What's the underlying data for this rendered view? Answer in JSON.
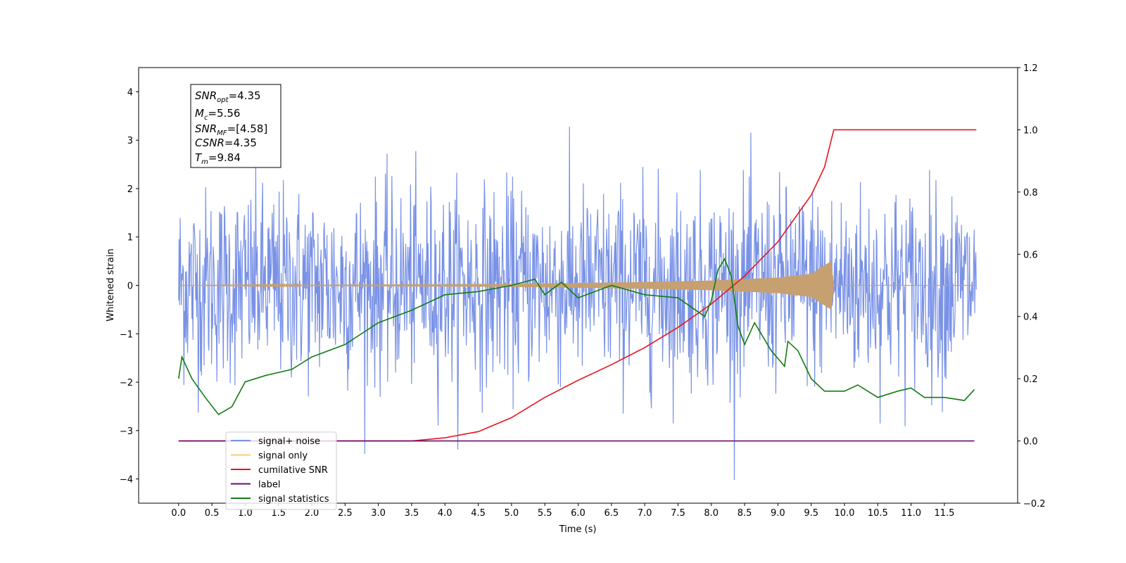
{
  "chart_data": {
    "type": "line",
    "xlabel": "Time (s)",
    "ylabel": "Whitened strain",
    "xlim": [
      -0.6,
      12.6
    ],
    "ylim": [
      -4.5,
      4.5
    ],
    "y2lim": [
      -0.2,
      1.2
    ],
    "grid": false,
    "legend_position": "lower-left",
    "x_ticks": [
      "0.0",
      "0.5",
      "1.0",
      "1.5",
      "2.0",
      "2.5",
      "3.0",
      "3.5",
      "4.0",
      "4.5",
      "5.0",
      "5.5",
      "6.0",
      "6.5",
      "7.0",
      "7.5",
      "8.0",
      "8.5",
      "9.0",
      "9.5",
      "10.0",
      "10.5",
      "11.0",
      "11.5"
    ],
    "y_ticks": [
      "4",
      "3",
      "2",
      "1",
      "0",
      "−1",
      "−2",
      "−3",
      "−4"
    ],
    "y2_ticks": [
      "1.2",
      "1.0",
      "0.8",
      "0.6",
      "0.4",
      "0.2",
      "0.0",
      "−0.2"
    ],
    "annotation": {
      "snr_opt": {
        "name": "SNR",
        "sub": "opt",
        "value": "=4.35"
      },
      "mc": {
        "name": "M",
        "sub": "c",
        "value": "=5.56"
      },
      "snr_mf": {
        "name": "SNR",
        "sub": "MF",
        "value": "=[4.58]"
      },
      "csnr": {
        "name": "CSNR",
        "sub": "",
        "value": "=4.35"
      },
      "tm": {
        "name": "T",
        "sub": "m",
        "value": "=9.84"
      }
    },
    "series": [
      {
        "name": "signal+ noise",
        "color": "#7992e6",
        "axis": "left",
        "t_range": [
          0.0,
          11.98
        ],
        "noise_std": 1.0,
        "approx_min": -4.07,
        "approx_max": 4.13
      },
      {
        "name": "signal only",
        "color": "#c6a070",
        "legend_color": "#ffc877",
        "axis": "left",
        "t_range": [
          0.0,
          9.84
        ],
        "envelope": [
          {
            "t": 0.0,
            "a": 0.0
          },
          {
            "t": 5.0,
            "a": 0.03
          },
          {
            "t": 7.0,
            "a": 0.07
          },
          {
            "t": 8.0,
            "a": 0.1
          },
          {
            "t": 9.0,
            "a": 0.16
          },
          {
            "t": 9.5,
            "a": 0.24
          },
          {
            "t": 9.8,
            "a": 0.5
          },
          {
            "t": 9.84,
            "a": 0.0
          }
        ]
      },
      {
        "name": "cumilative SNR",
        "color": "#e8141e",
        "axis": "right",
        "points": [
          {
            "x": 0.0,
            "y": 0.0
          },
          {
            "x": 3.5,
            "y": 0.0
          },
          {
            "x": 4.0,
            "y": 0.01
          },
          {
            "x": 4.5,
            "y": 0.03
          },
          {
            "x": 5.0,
            "y": 0.075
          },
          {
            "x": 5.5,
            "y": 0.14
          },
          {
            "x": 6.0,
            "y": 0.195
          },
          {
            "x": 6.5,
            "y": 0.245
          },
          {
            "x": 7.0,
            "y": 0.3
          },
          {
            "x": 7.5,
            "y": 0.365
          },
          {
            "x": 8.0,
            "y": 0.44
          },
          {
            "x": 8.5,
            "y": 0.53
          },
          {
            "x": 9.0,
            "y": 0.64
          },
          {
            "x": 9.5,
            "y": 0.79
          },
          {
            "x": 9.7,
            "y": 0.88
          },
          {
            "x": 9.84,
            "y": 1.0
          },
          {
            "x": 11.98,
            "y": 1.0
          }
        ]
      },
      {
        "name": "label",
        "color": "#6a0d6e",
        "axis": "right",
        "points": [
          {
            "x": 0.0,
            "y": 0.0
          },
          {
            "x": 11.95,
            "y": 0.0
          }
        ]
      },
      {
        "name": "signal statistics",
        "color": "#117d11",
        "axis": "right",
        "points": [
          {
            "x": 0.0,
            "y": 0.2
          },
          {
            "x": 0.05,
            "y": 0.27
          },
          {
            "x": 0.2,
            "y": 0.2
          },
          {
            "x": 0.4,
            "y": 0.14
          },
          {
            "x": 0.6,
            "y": 0.085
          },
          {
            "x": 0.8,
            "y": 0.11
          },
          {
            "x": 1.0,
            "y": 0.19
          },
          {
            "x": 1.3,
            "y": 0.21
          },
          {
            "x": 1.7,
            "y": 0.23
          },
          {
            "x": 2.0,
            "y": 0.27
          },
          {
            "x": 2.5,
            "y": 0.31
          },
          {
            "x": 3.0,
            "y": 0.38
          },
          {
            "x": 3.5,
            "y": 0.42
          },
          {
            "x": 4.0,
            "y": 0.47
          },
          {
            "x": 4.5,
            "y": 0.48
          },
          {
            "x": 5.0,
            "y": 0.5
          },
          {
            "x": 5.35,
            "y": 0.52
          },
          {
            "x": 5.5,
            "y": 0.47
          },
          {
            "x": 5.75,
            "y": 0.51
          },
          {
            "x": 6.0,
            "y": 0.46
          },
          {
            "x": 6.5,
            "y": 0.5
          },
          {
            "x": 7.0,
            "y": 0.47
          },
          {
            "x": 7.5,
            "y": 0.46
          },
          {
            "x": 7.9,
            "y": 0.4
          },
          {
            "x": 8.0,
            "y": 0.45
          },
          {
            "x": 8.1,
            "y": 0.55
          },
          {
            "x": 8.2,
            "y": 0.585
          },
          {
            "x": 8.3,
            "y": 0.53
          },
          {
            "x": 8.4,
            "y": 0.37
          },
          {
            "x": 8.5,
            "y": 0.31
          },
          {
            "x": 8.65,
            "y": 0.38
          },
          {
            "x": 8.9,
            "y": 0.29
          },
          {
            "x": 9.1,
            "y": 0.24
          },
          {
            "x": 9.15,
            "y": 0.32
          },
          {
            "x": 9.3,
            "y": 0.29
          },
          {
            "x": 9.5,
            "y": 0.2
          },
          {
            "x": 9.7,
            "y": 0.16
          },
          {
            "x": 10.0,
            "y": 0.16
          },
          {
            "x": 10.2,
            "y": 0.18
          },
          {
            "x": 10.5,
            "y": 0.14
          },
          {
            "x": 10.8,
            "y": 0.16
          },
          {
            "x": 11.0,
            "y": 0.17
          },
          {
            "x": 11.2,
            "y": 0.14
          },
          {
            "x": 11.5,
            "y": 0.14
          },
          {
            "x": 11.8,
            "y": 0.13
          },
          {
            "x": 11.95,
            "y": 0.165
          }
        ]
      }
    ],
    "legend_entries": [
      {
        "label": "signal+ noise",
        "color": "#7992e6"
      },
      {
        "label": "signal only",
        "color": "#ffc877"
      },
      {
        "label": "cumilative SNR",
        "color": "#e8141e"
      },
      {
        "label": "label",
        "color": "#6a0d6e"
      },
      {
        "label": "signal statistics",
        "color": "#117d11"
      }
    ]
  }
}
